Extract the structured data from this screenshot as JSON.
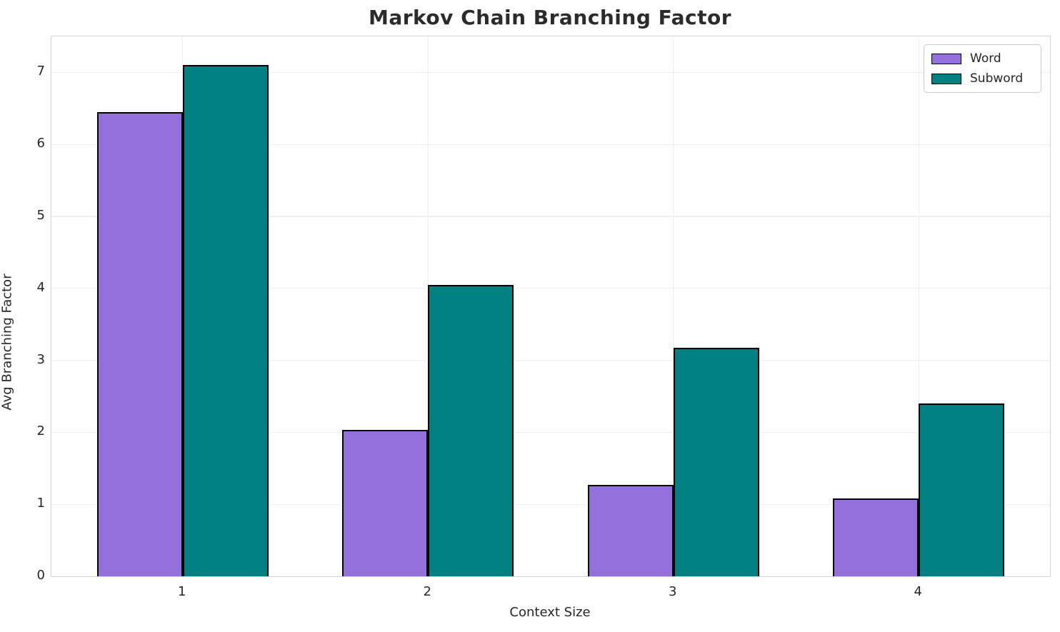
{
  "chart_data": {
    "type": "bar",
    "title": "Markov Chain Branching Factor",
    "xlabel": "Context Size",
    "ylabel": "Avg Branching Factor",
    "categories": [
      "1",
      "2",
      "3",
      "4"
    ],
    "series": [
      {
        "name": "Word",
        "color": "#9370DB",
        "values": [
          6.45,
          2.03,
          1.27,
          1.08
        ]
      },
      {
        "name": "Subword",
        "color": "#008080",
        "values": [
          7.1,
          4.05,
          3.17,
          2.4
        ]
      }
    ],
    "ylim": [
      0,
      7.5
    ],
    "yticks": [
      0,
      1,
      2,
      3,
      4,
      5,
      6,
      7
    ],
    "grid": true,
    "legend_position": "upper right",
    "bar_edge_color": "#000000",
    "bar_width_fraction": 0.35
  }
}
